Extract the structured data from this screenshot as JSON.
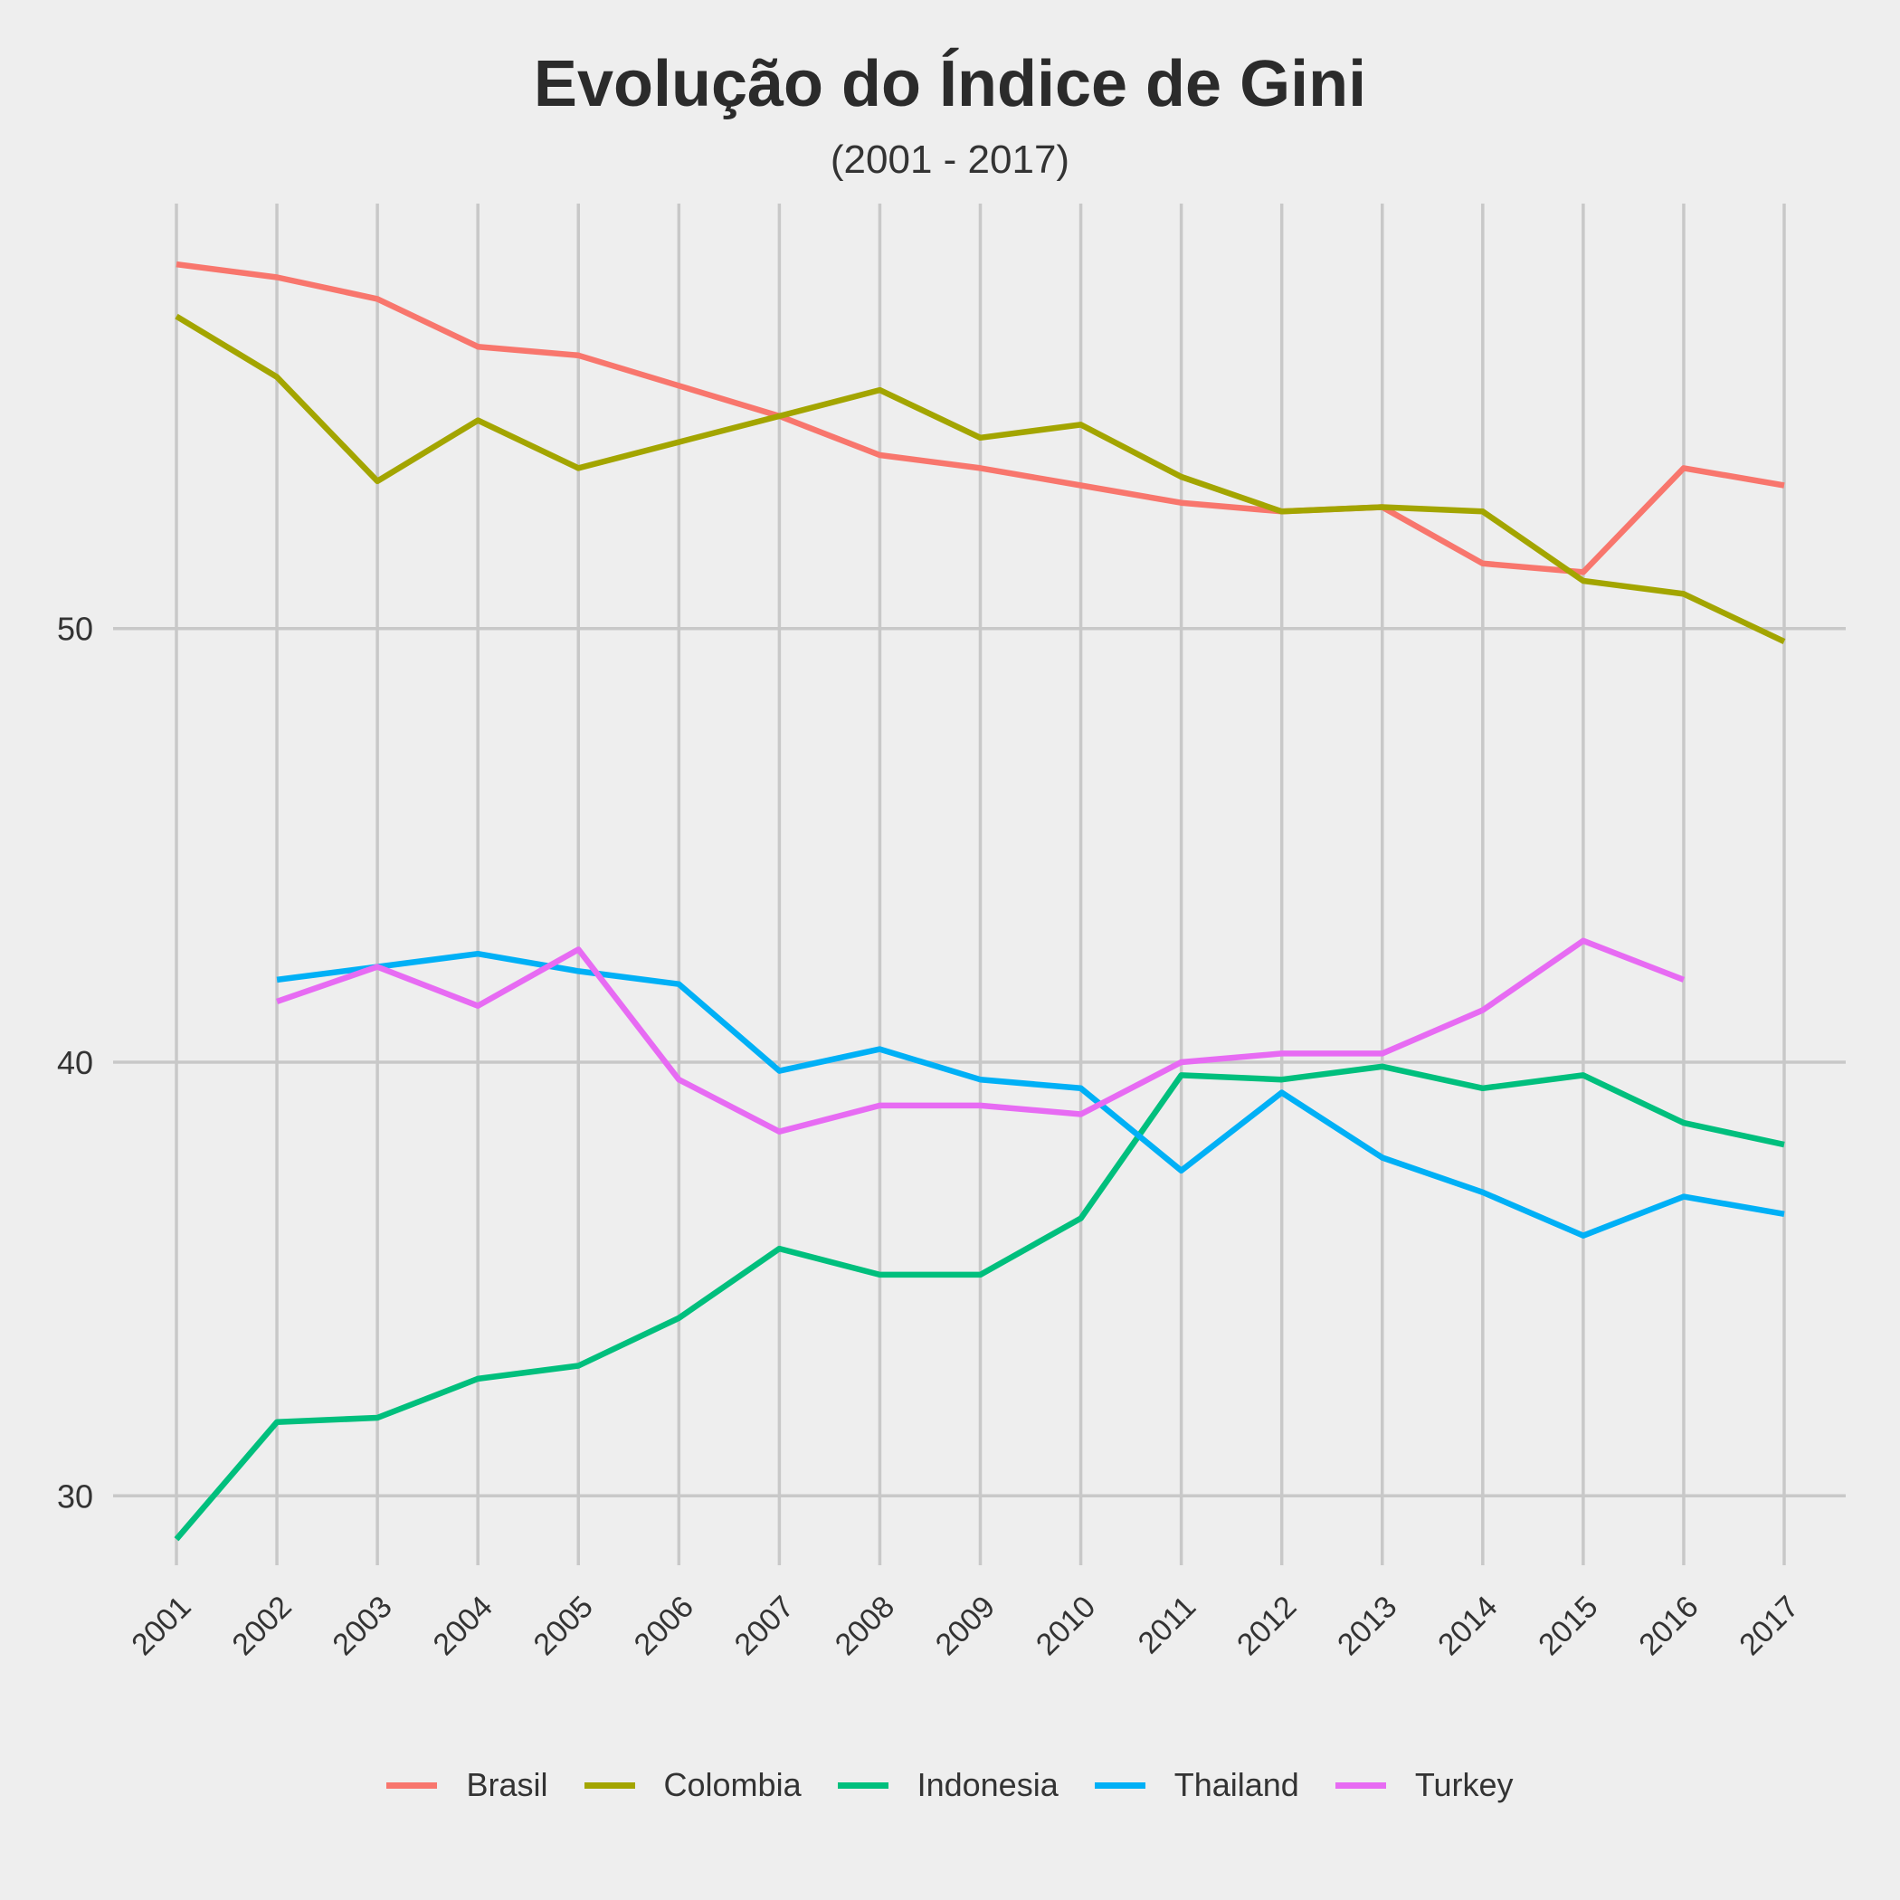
{
  "chart_data": {
    "type": "line",
    "title": "Evolução do Índice de Gini",
    "subtitle": "(2001 - 2017)",
    "xlabel": "",
    "ylabel": "",
    "x": [
      "2001",
      "2002",
      "2003",
      "2004",
      "2005",
      "2006",
      "2007",
      "2008",
      "2009",
      "2010",
      "2011",
      "2012",
      "2013",
      "2014",
      "2015",
      "2016",
      "2017"
    ],
    "y_ticks": [
      30,
      40,
      50
    ],
    "ylim": [
      28.4,
      59.8
    ],
    "grid": true,
    "legend_position": "bottom",
    "series": [
      {
        "name": "Brasil",
        "color": "#F8766D",
        "values": [
          58.4,
          58.1,
          57.6,
          56.5,
          56.3,
          55.6,
          54.9,
          54.0,
          53.7,
          53.3,
          52.9,
          52.7,
          52.8,
          51.5,
          51.3,
          53.7,
          53.3
        ]
      },
      {
        "name": "Colombia",
        "color": "#A3A500",
        "values": [
          57.2,
          55.8,
          53.4,
          54.8,
          53.7,
          54.3,
          54.9,
          55.5,
          54.4,
          54.7,
          53.5,
          52.7,
          52.8,
          52.7,
          51.1,
          50.8,
          49.7
        ]
      },
      {
        "name": "Indonesia",
        "color": "#00BF7D",
        "values": [
          29.0,
          31.7,
          31.8,
          32.7,
          33.0,
          34.1,
          35.7,
          35.1,
          35.1,
          36.4,
          39.7,
          39.6,
          39.9,
          39.4,
          39.7,
          38.6,
          38.1
        ]
      },
      {
        "name": "Thailand",
        "color": "#00B0F6",
        "values": [
          null,
          41.9,
          42.2,
          42.5,
          42.1,
          41.8,
          39.8,
          40.3,
          39.6,
          39.4,
          37.5,
          39.3,
          37.8,
          37.0,
          36.0,
          36.9,
          36.5
        ]
      },
      {
        "name": "Turkey",
        "color": "#E76BF3",
        "values": [
          null,
          41.4,
          42.2,
          41.3,
          42.6,
          39.6,
          38.4,
          39.0,
          39.0,
          38.8,
          40.0,
          40.2,
          40.2,
          41.2,
          42.8,
          41.9,
          null
        ]
      }
    ]
  }
}
